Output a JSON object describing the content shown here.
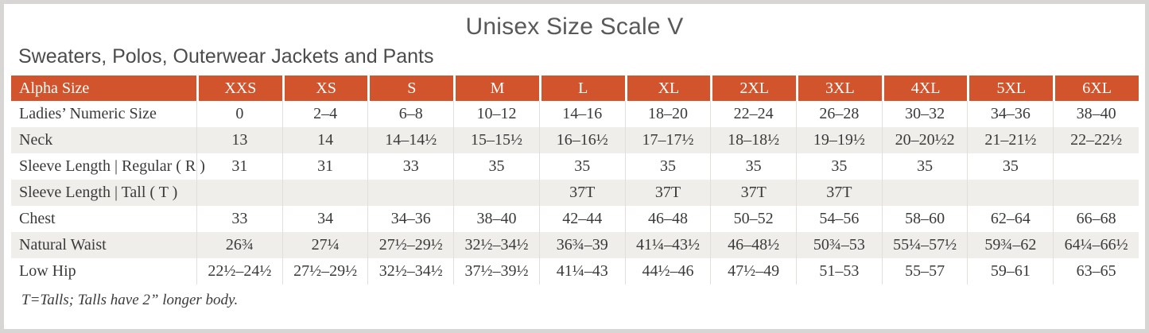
{
  "page": {
    "title": "Unisex Size Scale V",
    "subtitle": "Sweaters, Polos, Outerwear Jackets and Pants",
    "footnote": "T=Talls; Talls have 2” longer body."
  },
  "table": {
    "header": [
      "Alpha Size",
      "XXS",
      "XS",
      "S",
      "M",
      "L",
      "XL",
      "2XL",
      "3XL",
      "4XL",
      "5XL",
      "6XL"
    ],
    "rows": [
      {
        "label": "Ladies’ Numeric Size",
        "values": [
          "0",
          "2–4",
          "6–8",
          "10–12",
          "14–16",
          "18–20",
          "22–24",
          "26–28",
          "30–32",
          "34–36",
          "38–40"
        ]
      },
      {
        "label": "Neck",
        "values": [
          "13",
          "14",
          "14–14½",
          "15–15½",
          "16–16½",
          "17–17½",
          "18–18½",
          "19–19½",
          "20–20½2",
          "21–21½",
          "22–22½"
        ]
      },
      {
        "label": "Sleeve Length | Regular ( R )",
        "values": [
          "31",
          "31",
          "33",
          "35",
          "35",
          "35",
          "35",
          "35",
          "35",
          "35",
          ""
        ]
      },
      {
        "label": "Sleeve Length | Tall ( T )",
        "values": [
          "",
          "",
          "",
          "",
          "37T",
          "37T",
          "37T",
          "37T",
          "",
          "",
          ""
        ]
      },
      {
        "label": "Chest",
        "values": [
          "33",
          "34",
          "34–36",
          "38–40",
          "42–44",
          "46–48",
          "50–52",
          "54–56",
          "58–60",
          "62–64",
          "66–68"
        ]
      },
      {
        "label": "Natural Waist",
        "values": [
          "26¾",
          "27¼",
          "27½–29½",
          "32½–34½",
          "36¾–39",
          "41¼–43½",
          "46–48½",
          "50¾–53",
          "55¼–57½",
          "59¾–62",
          "64¼–66½"
        ]
      },
      {
        "label": "Low Hip",
        "values": [
          "22½–24½",
          "27½–29½",
          "32½–34½",
          "37½–39½",
          "41¼–43",
          "44½–46",
          "47½–49",
          "51–53",
          "55–57",
          "59–61",
          "63–65"
        ]
      }
    ],
    "colors": {
      "header_bg": "#D2542C",
      "header_text": "#FFFFFF",
      "stripe_bg": "#F0EEEB"
    }
  }
}
